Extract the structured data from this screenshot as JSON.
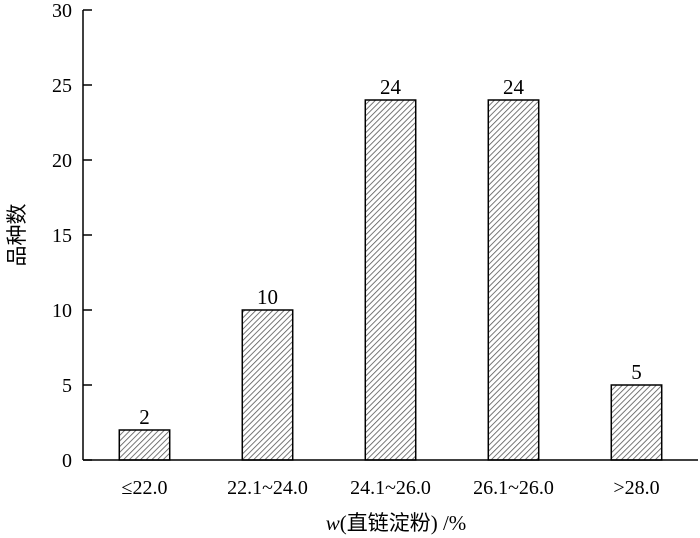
{
  "chart_data": {
    "type": "bar",
    "categories": [
      "≤22.0",
      "22.1~24.0",
      "24.1~26.0",
      "26.1~26.0",
      ">28.0"
    ],
    "values": [
      2,
      10,
      24,
      24,
      5
    ],
    "data_labels": [
      "2",
      "10",
      "24",
      "24",
      "5"
    ],
    "title": "",
    "xlabel_italic": "w",
    "xlabel_rest": "(直链淀粉) /%",
    "ylabel": "品种数",
    "ylim": [
      0,
      30
    ],
    "yticks": [
      0,
      5,
      10,
      15,
      20,
      25,
      30
    ],
    "ytick_labels": [
      "0",
      "5",
      "10",
      "15",
      "20",
      "25",
      "30"
    ],
    "grid": false,
    "legend": "none",
    "bar_fill": "diagonal-hatch",
    "colors": {
      "bar_stroke": "#000000",
      "hatch": "#555555",
      "axis": "#000000"
    }
  }
}
